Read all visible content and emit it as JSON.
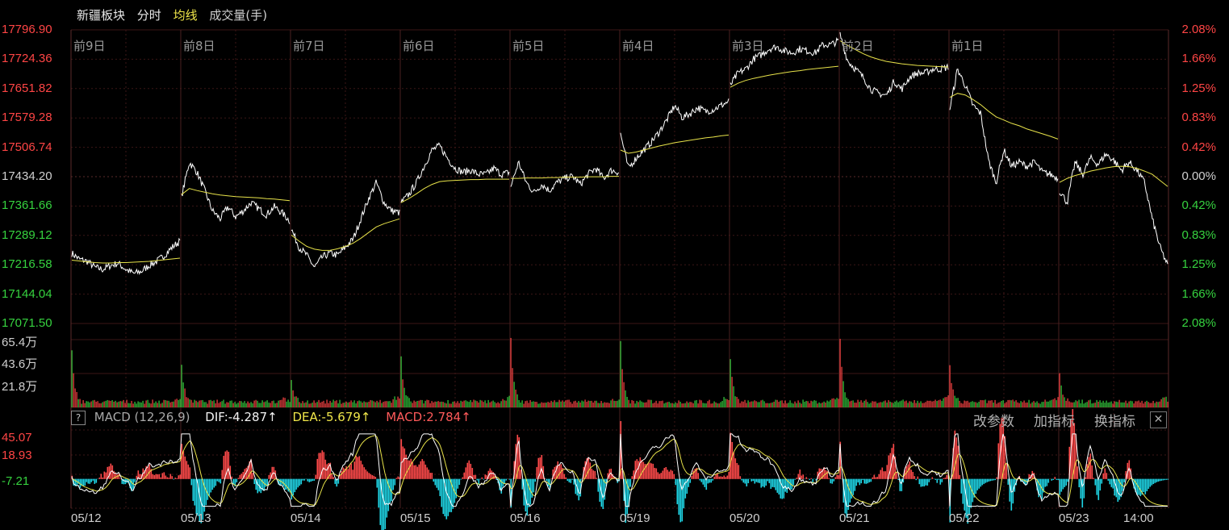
{
  "header": {
    "title": "新疆板块",
    "tab_time": "分时",
    "tab_avg": "均线",
    "tab_vol": "成交量(手)"
  },
  "colors": {
    "up": "#ff4545",
    "down": "#36d23f",
    "price": "#ffffff",
    "avg": "#e8e34a",
    "grid": "#3a1a1a",
    "cyan": "#1fd6e6",
    "macd_up": "#ff4a4a"
  },
  "chart_data": [
    {
      "type": "line",
      "name": "price",
      "y_ticks_left": [
        "17796.90",
        "17724.36",
        "17651.82",
        "17579.28",
        "17506.74",
        "17434.20",
        "17361.66",
        "17289.12",
        "17216.58",
        "17144.04",
        "17071.50"
      ],
      "y_ticks_right": [
        "2.08%",
        "1.66%",
        "1.25%",
        "0.83%",
        "0.42%",
        "0.00%",
        "0.42%",
        "0.83%",
        "1.25%",
        "1.66%",
        "2.08%"
      ],
      "ylim": [
        17071.5,
        17796.9
      ],
      "base": 17434.2,
      "day_labels": [
        "前9日",
        "前8日",
        "前7日",
        "前6日",
        "前5日",
        "前4日",
        "前3日",
        "前2日",
        "前1日"
      ],
      "x_dates": [
        "05/12",
        "05/13",
        "05/14",
        "05/15",
        "05/16",
        "05/19",
        "05/20",
        "05/21",
        "05/22",
        "05/23",
        "14:00"
      ],
      "segments": [
        {
          "label": "05/12",
          "open": 17245,
          "close": 17275,
          "path": [
            17245,
            17230,
            17225,
            17210,
            17205,
            17215,
            17220,
            17205,
            17195,
            17200,
            17215,
            17225,
            17240,
            17260,
            17275
          ],
          "avg": [
            17228,
            17226,
            17224,
            17222,
            17221,
            17221,
            17222,
            17222,
            17223,
            17224,
            17225,
            17227,
            17229,
            17231,
            17233
          ]
        },
        {
          "label": "05/13",
          "open": 17385,
          "close": 17355,
          "path": [
            17385,
            17470,
            17445,
            17400,
            17350,
            17330,
            17360,
            17335,
            17350,
            17370,
            17355,
            17340,
            17360,
            17345,
            17325
          ],
          "avg": [
            17390,
            17405,
            17400,
            17396,
            17392,
            17389,
            17387,
            17385,
            17384,
            17383,
            17382,
            17380,
            17379,
            17377,
            17375
          ]
        },
        {
          "label": "05/14",
          "open": 17305,
          "close": 17370,
          "path": [
            17305,
            17260,
            17240,
            17210,
            17235,
            17245,
            17240,
            17260,
            17280,
            17330,
            17380,
            17420,
            17370,
            17350,
            17345
          ],
          "avg": [
            17290,
            17275,
            17262,
            17255,
            17252,
            17252,
            17256,
            17262,
            17270,
            17282,
            17296,
            17310,
            17318,
            17324,
            17330
          ]
        },
        {
          "label": "05/15",
          "open": 17370,
          "close": 17445,
          "path": [
            17370,
            17390,
            17420,
            17460,
            17500,
            17510,
            17480,
            17455,
            17445,
            17450,
            17440,
            17440,
            17455,
            17440,
            17445
          ],
          "avg": [
            17370,
            17380,
            17392,
            17405,
            17415,
            17422,
            17424,
            17425,
            17426,
            17427,
            17427,
            17428,
            17428,
            17428,
            17428
          ]
        },
        {
          "label": "05/16",
          "open": 17410,
          "close": 17445,
          "path": [
            17410,
            17470,
            17420,
            17395,
            17415,
            17400,
            17420,
            17430,
            17435,
            17415,
            17440,
            17455,
            17430,
            17450,
            17445
          ],
          "avg": [
            17430,
            17430,
            17431,
            17431,
            17431,
            17432,
            17432,
            17433,
            17433,
            17433,
            17434,
            17434,
            17434,
            17435,
            17435
          ]
        },
        {
          "label": "05/19",
          "open": 17540,
          "close": 17590,
          "path": [
            17540,
            17455,
            17480,
            17500,
            17520,
            17545,
            17575,
            17610,
            17580,
            17590,
            17605,
            17595,
            17600,
            17610,
            17620
          ],
          "avg": [
            17500,
            17492,
            17495,
            17500,
            17505,
            17510,
            17514,
            17518,
            17521,
            17524,
            17527,
            17530,
            17532,
            17535,
            17537
          ]
        },
        {
          "label": "05/20",
          "open": 17660,
          "close": 17760,
          "path": [
            17660,
            17690,
            17700,
            17725,
            17735,
            17750,
            17755,
            17745,
            17740,
            17750,
            17745,
            17740,
            17760,
            17760,
            17770
          ],
          "avg": [
            17655,
            17665,
            17672,
            17677,
            17681,
            17685,
            17688,
            17691,
            17694,
            17696,
            17699,
            17701,
            17703,
            17705,
            17707
          ]
        },
        {
          "label": "05/21",
          "open": 17785,
          "close": 17705,
          "path": [
            17785,
            17720,
            17700,
            17680,
            17650,
            17640,
            17635,
            17670,
            17650,
            17680,
            17690,
            17690,
            17700,
            17700,
            17705
          ],
          "avg": [
            17770,
            17758,
            17748,
            17738,
            17730,
            17724,
            17719,
            17716,
            17713,
            17711,
            17709,
            17708,
            17707,
            17706,
            17705
          ]
        },
        {
          "label": "05/22",
          "open": 17600,
          "close": 17405,
          "path": [
            17600,
            17700,
            17660,
            17610,
            17590,
            17475,
            17420,
            17500,
            17460,
            17470,
            17460,
            17470,
            17445,
            17440,
            17430
          ],
          "avg": [
            17630,
            17640,
            17636,
            17625,
            17612,
            17596,
            17582,
            17574,
            17566,
            17560,
            17552,
            17546,
            17540,
            17534,
            17527
          ]
        },
        {
          "label": "05/23",
          "open": 17400,
          "close": 17215,
          "path": [
            17400,
            17370,
            17470,
            17440,
            17480,
            17465,
            17490,
            17475,
            17450,
            17470,
            17450,
            17420,
            17330,
            17260,
            17215
          ],
          "avg": [
            17420,
            17430,
            17437,
            17442,
            17448,
            17452,
            17456,
            17459,
            17460,
            17459,
            17455,
            17448,
            17440,
            17425,
            17410
          ]
        }
      ]
    },
    {
      "type": "bar",
      "name": "volume",
      "y_ticks": [
        "65.4万",
        "43.6万",
        "21.8万"
      ],
      "ylim": [
        0,
        65.4
      ],
      "session_spikes": [
        48,
        36,
        20,
        42,
        62,
        57,
        43,
        62,
        36,
        28
      ],
      "base_level": 3.5
    },
    {
      "type": "line",
      "name": "macd",
      "y_ticks": [
        "45.07",
        "18.93",
        "-7.21"
      ],
      "ylim": [
        -30,
        50
      ],
      "legend": {
        "title": "MACD (12,26,9)",
        "dif": "DIF:-4.287↑",
        "dea": "DEA:-5.679↑",
        "macd": "MACD:2.784↑"
      }
    }
  ],
  "macd_toolbar": {
    "help": "?",
    "change_params": "改参数",
    "add_indicator": "加指标",
    "switch_indicator": "换指标",
    "close": "✕"
  }
}
